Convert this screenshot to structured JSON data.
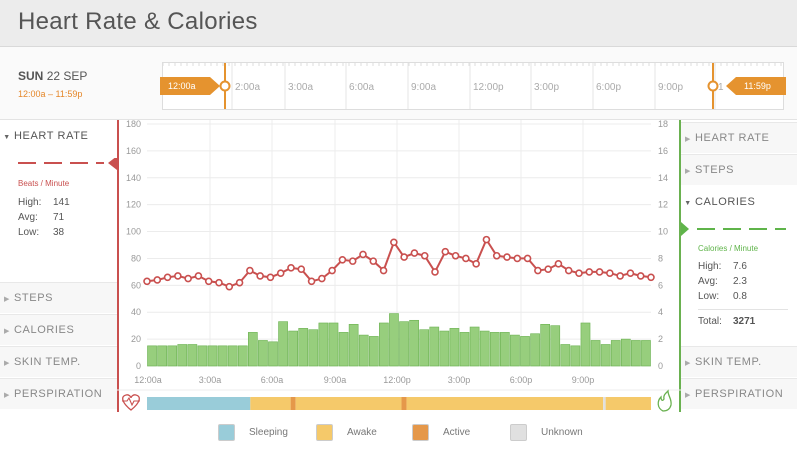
{
  "header": {
    "title": "Heart Rate & Calories"
  },
  "date": {
    "day": "SUN",
    "date": "22 SEP",
    "range": "12:00a – 11:59p"
  },
  "timeline": {
    "ticks": [
      "2:00a",
      "3:00a",
      "6:00a",
      "9:00a",
      "12:00p",
      "3:00p",
      "6:00p",
      "9:00p",
      "1"
    ],
    "handle_start": "12:00a",
    "handle_end": "11:59p"
  },
  "left_panel": {
    "active": {
      "label": "HEART RATE",
      "unit": "Beats / Minute",
      "color": "#c9504f",
      "stats": [
        {
          "label": "High:",
          "value": "141"
        },
        {
          "label": "Avg:",
          "value": "71"
        },
        {
          "label": "Low:",
          "value": "38"
        }
      ]
    },
    "items": [
      "STEPS",
      "CALORIES",
      "SKIN TEMP.",
      "PERSPIRATION"
    ]
  },
  "right_panel": {
    "items_top": [
      "HEART RATE",
      "STEPS"
    ],
    "active": {
      "label": "CALORIES",
      "unit": "Calories / Minute",
      "color": "#5fb44a",
      "stats": [
        {
          "label": "High:",
          "value": "7.6"
        },
        {
          "label": "Avg:",
          "value": "2.3"
        },
        {
          "label": "Low:",
          "value": "0.8"
        }
      ],
      "total_label": "Total:",
      "total_value": "3271"
    },
    "items_bottom": [
      "SKIN TEMP.",
      "PERSPIRATION"
    ]
  },
  "legend": [
    {
      "label": "Sleeping",
      "color": "#99ccd9"
    },
    {
      "label": "Awake",
      "color": "#f5c96a"
    },
    {
      "label": "Active",
      "color": "#e5984a"
    },
    {
      "label": "Unknown",
      "color": "#e0e0e0"
    }
  ],
  "chart_data": {
    "type": "line",
    "x_ticks": [
      "12:00a",
      "3:00a",
      "6:00a",
      "9:00a",
      "12:00p",
      "3:00p",
      "6:00p",
      "9:00p"
    ],
    "y_left": {
      "ticks": [
        "0",
        "20",
        "40",
        "60",
        "80",
        "100",
        "120",
        "140",
        "160",
        "180"
      ],
      "ylim": [
        0,
        180
      ]
    },
    "y_right": {
      "ticks": [
        "0",
        "2",
        "4",
        "6",
        "8",
        "10",
        "12",
        "14",
        "16",
        "18"
      ],
      "ylim": [
        0,
        18
      ]
    },
    "heart_rate": {
      "values": [
        63,
        64,
        66,
        67,
        65,
        67,
        63,
        62,
        59,
        62,
        71,
        67,
        66,
        69,
        73,
        72,
        63,
        65,
        71,
        79,
        78,
        83,
        78,
        71,
        92,
        81,
        84,
        82,
        70,
        85,
        82,
        80,
        76,
        94,
        82,
        81,
        80,
        80,
        71,
        72,
        76,
        71,
        69,
        70,
        70,
        69,
        67,
        69,
        67,
        66
      ]
    },
    "calories": {
      "values": [
        1.5,
        1.5,
        1.5,
        1.6,
        1.6,
        1.5,
        1.5,
        1.5,
        1.5,
        1.5,
        2.5,
        1.9,
        1.8,
        3.3,
        2.6,
        2.8,
        2.7,
        3.2,
        3.2,
        2.5,
        3.1,
        2.3,
        2.2,
        3.2,
        3.9,
        3.3,
        3.4,
        2.7,
        2.9,
        2.6,
        2.8,
        2.5,
        2.9,
        2.6,
        2.5,
        2.5,
        2.3,
        2.2,
        2.4,
        3.1,
        3.0,
        1.6,
        1.5,
        3.2,
        1.9,
        1.6,
        1.9,
        2.0,
        1.9,
        1.9
      ]
    },
    "activity_states": [
      {
        "state": "Sleeping",
        "from": 0,
        "to": 0.205
      },
      {
        "state": "Awake",
        "from": 0.205,
        "to": 0.285
      },
      {
        "state": "Active",
        "from": 0.285,
        "to": 0.295
      },
      {
        "state": "Awake",
        "from": 0.295,
        "to": 0.505
      },
      {
        "state": "Active",
        "from": 0.505,
        "to": 0.515
      },
      {
        "state": "Awake",
        "from": 0.515,
        "to": 0.905
      },
      {
        "state": "Unknown",
        "from": 0.905,
        "to": 0.91
      },
      {
        "state": "Awake",
        "from": 0.91,
        "to": 1.0
      }
    ],
    "colors": {
      "heart_rate": "#c9504f",
      "calories_fill": "#97ce7d",
      "calories_stroke": "#6ab150",
      "grid": "#ececec",
      "left_axis": "#c9504f",
      "right_axis": "#6ab150"
    }
  }
}
